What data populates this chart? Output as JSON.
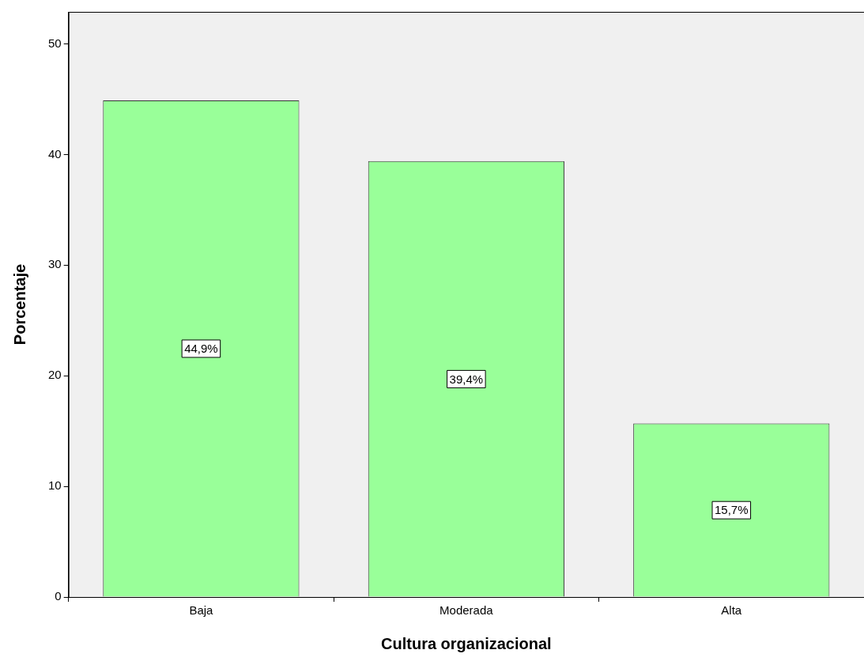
{
  "chart_data": {
    "type": "bar",
    "xlabel": "Cultura organizacional",
    "ylabel": "Porcentaje",
    "categories": [
      "Baja",
      "Moderada",
      "Alta"
    ],
    "values": [
      44.9,
      39.4,
      15.7
    ],
    "value_labels": [
      "44,9%",
      "39,4%",
      "15,7%"
    ],
    "color": "#99ff99",
    "ylim": [
      0,
      52.9
    ],
    "yticks": [
      0,
      10,
      20,
      30,
      40,
      50
    ],
    "grid": false,
    "legend": false
  }
}
